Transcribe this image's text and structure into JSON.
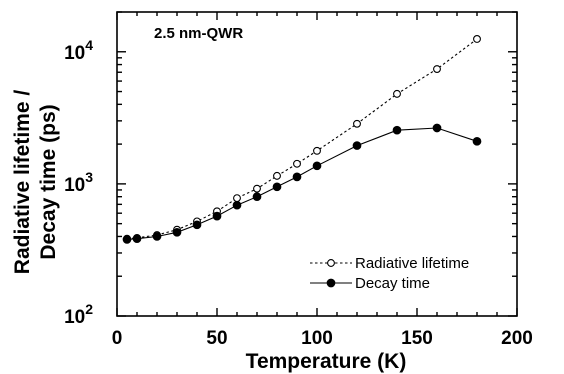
{
  "chart_data": {
    "type": "line",
    "xlabel": "Temperature (K)",
    "ylabel_line1": "Radiative lifetime /",
    "ylabel_line2": "Decay time (ps)",
    "annotation": "2.5  nm-QWR",
    "xlim": [
      0,
      200
    ],
    "ylim": [
      100,
      20000
    ],
    "y_scale": "log",
    "x_ticks": [
      0,
      50,
      100,
      150,
      200
    ],
    "y_ticks": [
      {
        "value": 100,
        "base": "10",
        "exp": "2"
      },
      {
        "value": 1000,
        "base": "10",
        "exp": "3"
      },
      {
        "value": 10000,
        "base": "10",
        "exp": "4"
      }
    ],
    "legend_position": "lower-right",
    "series": [
      {
        "name": "Radiative lifetime",
        "style": "dotted",
        "marker": "open-circle",
        "x": [
          5,
          10,
          20,
          30,
          40,
          50,
          60,
          70,
          80,
          90,
          100,
          120,
          140,
          160,
          180
        ],
        "y": [
          385,
          390,
          410,
          450,
          520,
          620,
          780,
          920,
          1150,
          1420,
          1780,
          2850,
          4800,
          7400,
          12500
        ]
      },
      {
        "name": "Decay time",
        "style": "solid",
        "marker": "filled-circle",
        "x": [
          5,
          10,
          20,
          30,
          40,
          50,
          60,
          70,
          80,
          90,
          100,
          120,
          140,
          160,
          180
        ],
        "y": [
          380,
          385,
          400,
          430,
          490,
          570,
          690,
          800,
          950,
          1130,
          1370,
          1950,
          2550,
          2650,
          2100
        ]
      }
    ]
  }
}
